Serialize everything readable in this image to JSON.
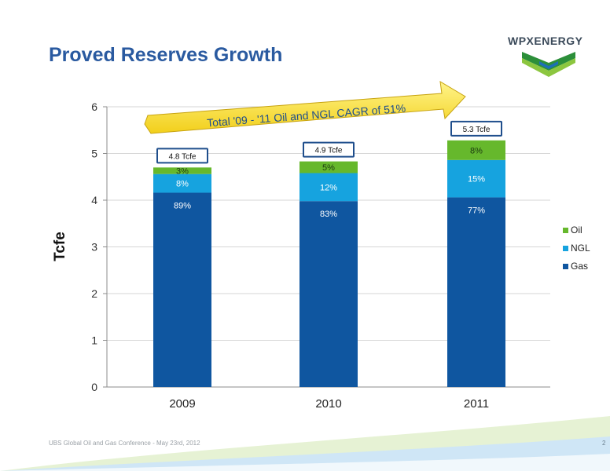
{
  "slide": {
    "title": "Proved Reserves  Growth",
    "logo_text": "WPXENERGY",
    "footer": "UBS Global Oil and Gas Conference  -  May 23rd, 2012",
    "page_number": "2"
  },
  "chart_data": {
    "type": "bar",
    "stacked": true,
    "categories": [
      "2009",
      "2010",
      "2011"
    ],
    "ylabel": "Tcfe",
    "ylim": [
      0,
      6
    ],
    "yticks": [
      "0",
      "1",
      "2",
      "3",
      "4",
      "5",
      "6"
    ],
    "series": [
      {
        "name": "Gas",
        "color": "#0f56a0",
        "values": [
          4.16,
          3.98,
          4.06
        ],
        "labels": [
          "89%",
          "83%",
          "77%"
        ]
      },
      {
        "name": "NGL",
        "color": "#16a3df",
        "values": [
          0.4,
          0.6,
          0.8
        ],
        "labels": [
          "8%",
          "12%",
          "15%"
        ]
      },
      {
        "name": "Oil",
        "color": "#66b82c",
        "values": [
          0.14,
          0.25,
          0.42
        ],
        "labels": [
          "3%",
          "5%",
          "8%"
        ]
      }
    ],
    "totals": [
      "4.8 Tcfe",
      "4.9 Tcfe",
      "5.3 Tcfe"
    ],
    "annotation": "Total '09 - '11 Oil and NGL CAGR of 51%",
    "legend_position": "right",
    "legend_order": [
      "Oil",
      "NGL",
      "Gas"
    ]
  }
}
